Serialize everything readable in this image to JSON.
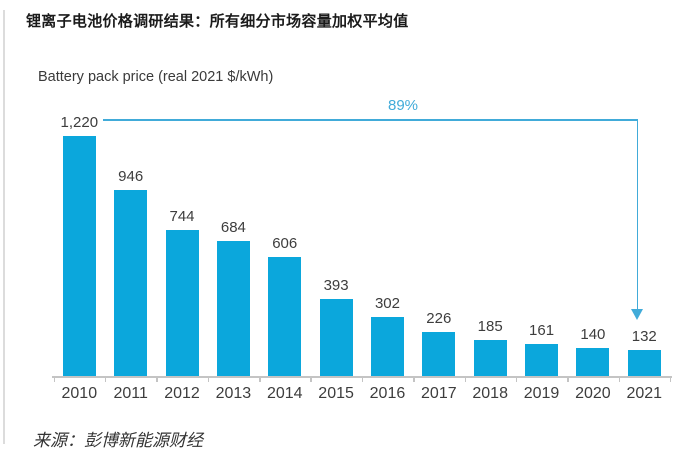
{
  "page": {
    "title": "锂离子电池价格调研结果：所有细分市场容量加权平均值",
    "source": "来源：彭博新能源财经"
  },
  "chart_data": {
    "type": "bar",
    "title": "Battery pack price (real 2021 $/kWh)",
    "categories": [
      "2010",
      "2011",
      "2012",
      "2013",
      "2014",
      "2015",
      "2016",
      "2017",
      "2018",
      "2019",
      "2020",
      "2021"
    ],
    "values": [
      1220,
      946,
      744,
      684,
      606,
      393,
      302,
      226,
      185,
      161,
      140,
      132
    ],
    "value_labels": [
      "1,220",
      "946",
      "744",
      "684",
      "606",
      "393",
      "302",
      "226",
      "185",
      "161",
      "140",
      "132"
    ],
    "xlabel": "",
    "ylabel": "",
    "ylim": [
      0,
      1220
    ],
    "grid": false,
    "legend": null,
    "annotation": {
      "label": "89%",
      "description": "decline from 2010 value to 2021 value, arrow from 1,220 level down to 132 bar"
    },
    "colors": {
      "bar": "#0BA7DC",
      "annotation": "#41ABD9",
      "axis": "#C4C4C4",
      "value_text": "#3D3D3D",
      "title_text": "#1B1B1B"
    }
  }
}
